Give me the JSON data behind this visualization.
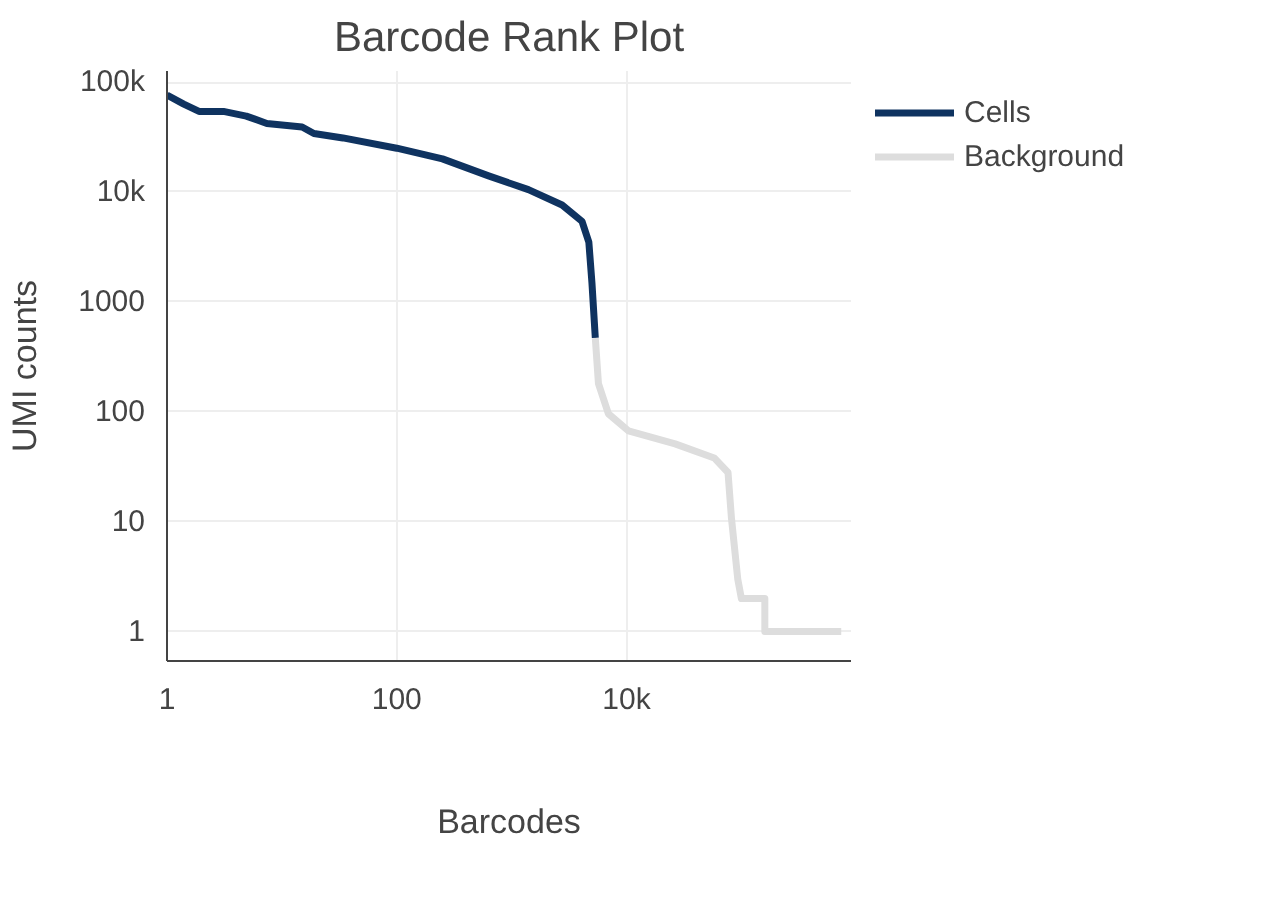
{
  "chart_data": {
    "type": "line",
    "title": "Barcode Rank Plot",
    "xlabel": "Barcodes",
    "ylabel": "UMI counts",
    "log": "xy",
    "grid": true,
    "legend": "top right",
    "line_style": "solid",
    "marker": "none",
    "xlim": [
      1,
      900000
    ],
    "ylim": [
      0.54,
      126000
    ],
    "xticks": [
      1,
      100,
      {
        "value": 10000,
        "label": "10k"
      }
    ],
    "yticks": [
      1,
      10,
      100,
      1000,
      {
        "value": 10000,
        "label": "10k"
      },
      {
        "value": 100000,
        "label": "100k"
      }
    ],
    "series": [
      {
        "name": "Cells",
        "color": "#0f3360",
        "x": [
          1,
          1.4,
          1.9,
          3.1,
          4.9,
          7.4,
          15,
          19,
          34,
          100,
          250,
          630,
          1400,
          2750,
          4100,
          4700,
          5000,
          5350
        ],
        "values": [
          76000,
          63000,
          54000,
          54000,
          49000,
          42000,
          39000,
          34000,
          31000,
          25000,
          20000,
          14000,
          10500,
          7600,
          5400,
          3500,
          1500,
          470
        ]
      },
      {
        "name": "Background",
        "color": "#dddddd",
        "x": [
          5350,
          5700,
          6950,
          10400,
          26500,
          58000,
          76500,
          82000,
          93000,
          100000,
          160000,
          160000,
          740000
        ],
        "values": [
          470,
          180,
          96,
          67,
          51,
          38,
          28,
          10.7,
          3,
          2,
          2,
          1,
          1
        ]
      }
    ]
  }
}
